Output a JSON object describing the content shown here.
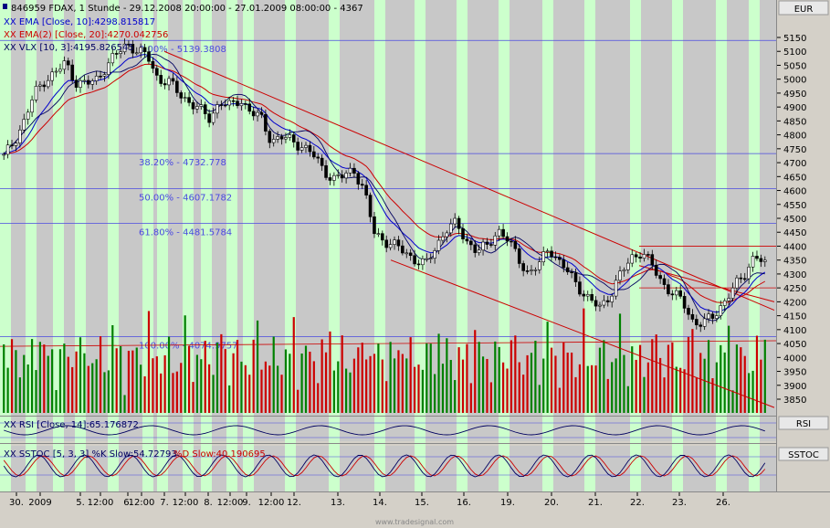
{
  "header": {
    "title": "846959  FDAX, 1 Stunde - 29.12.2008 20:00:00 - 27.01.2009 08:00:00 - 4367",
    "currency": "EUR",
    "legend": [
      {
        "text": "XX EMA [Close, 10]:4298.815817",
        "color": "#0000cc"
      },
      {
        "text": "XX EMA(2) [Close, 20]:4270.042756",
        "color": "#cc0000"
      },
      {
        "text": "XX VLX [10, 3]:4195.826545",
        "color": "#000060"
      }
    ]
  },
  "panels": {
    "rsi": {
      "legend": "XX RSI [Close, 14]:65.176872",
      "tab": "RSI"
    },
    "sstoc": {
      "legend_k": "XX SSTOC [5, 3, 3] %K Slow:54.72793",
      "legend_d": "%D Slow:40.190695",
      "tab": "SSTOC"
    }
  },
  "footer": {
    "watermark": "www.tradesignal.com"
  },
  "colors": {
    "up": "#008000",
    "down": "#cc0000",
    "session": "#ccffcc",
    "fib": "#4a4ae0",
    "trend": "#cc0000"
  },
  "chart_data": {
    "type": "candlestick",
    "instrument": "FDAX",
    "timeframe": "1 Stunde",
    "ylim": [
      3810,
      5185
    ],
    "y_ticks": [
      3850,
      3900,
      3950,
      4000,
      4050,
      4100,
      4150,
      4200,
      4250,
      4300,
      4350,
      4400,
      4450,
      4500,
      4550,
      4600,
      4650,
      4700,
      4750,
      4800,
      4850,
      4900,
      4950,
      5000,
      5050,
      5100,
      5150
    ],
    "x_tick_labels": [
      "30.",
      "2009",
      "5.",
      "12:00",
      "6.",
      "12:00",
      "7.",
      "12:00",
      "8.",
      "12:00",
      "9.",
      "12:00",
      "12.",
      "13.",
      "14.",
      "15.",
      "16.",
      "19.",
      "20.",
      "21.",
      "22.",
      "23.",
      "26."
    ],
    "fibonacci": [
      {
        "label": "0.00% - 5139.3808",
        "value": 5139.3808
      },
      {
        "label": "38.20% - 4732.778",
        "value": 4732.778
      },
      {
        "label": "50.00% - 4607.1782",
        "value": 4607.1782
      },
      {
        "label": "61.80% - 4481.5784",
        "value": 4481.5784
      },
      {
        "label": "100.00% - 4074.9757",
        "value": 4074.9757
      }
    ],
    "horizontal_levels": [
      4400,
      4250
    ],
    "close_path": [
      4720,
      4780,
      4850,
      4950,
      5000,
      5020,
      5060,
      4990,
      4980,
      5000,
      5050,
      5090,
      5130,
      5100,
      5080,
      5000,
      4990,
      4950,
      4920,
      4890,
      4860,
      4920,
      4900,
      4930,
      4880,
      4860,
      4780,
      4790,
      4780,
      4760,
      4730,
      4680,
      4640,
      4650,
      4680,
      4600,
      4450,
      4420,
      4400,
      4380,
      4350,
      4330,
      4400,
      4460,
      4480,
      4420,
      4380,
      4400,
      4460,
      4420,
      4360,
      4300,
      4330,
      4400,
      4340,
      4300,
      4250,
      4200,
      4180,
      4230,
      4300,
      4360,
      4380,
      4330,
      4270,
      4230,
      4200,
      4130,
      4120,
      4150,
      4200,
      4250,
      4300,
      4370,
      4330
    ]
  }
}
